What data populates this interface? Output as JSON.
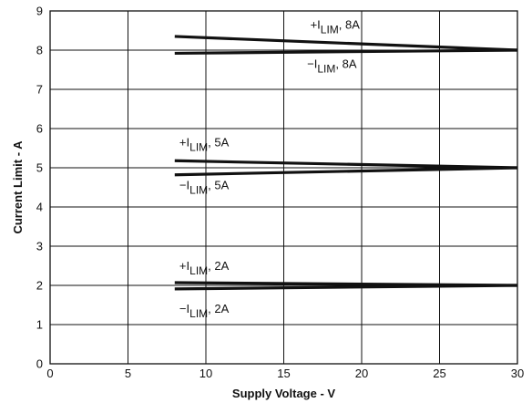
{
  "chart_data": {
    "type": "line",
    "title": "",
    "xlabel": "Supply Voltage - V",
    "ylabel": "Current Limit - A",
    "xlim": [
      0,
      30
    ],
    "ylim": [
      0,
      9
    ],
    "x_ticks": [
      "0",
      "5",
      "10",
      "15",
      "20",
      "25",
      "30"
    ],
    "y_ticks": [
      "0",
      "1",
      "2",
      "3",
      "4",
      "5",
      "6",
      "7",
      "8",
      "9"
    ],
    "grid": true,
    "series": [
      {
        "name": "+I_LIM, 8A",
        "x": [
          8,
          30
        ],
        "y": [
          8.35,
          8.0
        ]
      },
      {
        "name": "−I_LIM, 8A",
        "x": [
          8,
          30
        ],
        "y": [
          7.92,
          8.0
        ]
      },
      {
        "name": "+I_LIM, 5A",
        "x": [
          8,
          30
        ],
        "y": [
          5.18,
          5.0
        ]
      },
      {
        "name": "−I_LIM, 5A",
        "x": [
          8,
          30
        ],
        "y": [
          4.82,
          5.0
        ]
      },
      {
        "name": "+I_LIM, 2A",
        "x": [
          8,
          30
        ],
        "y": [
          2.07,
          2.0
        ]
      },
      {
        "name": "−I_LIM, 2A",
        "x": [
          8,
          30
        ],
        "y": [
          1.91,
          2.0
        ]
      }
    ],
    "annotations": [
      {
        "prefix": "+I",
        "sub": "LIM",
        "suffix": ", 8A",
        "x": 16.7,
        "y": 8.55
      },
      {
        "prefix": "−I",
        "sub": "LIM",
        "suffix": ", 8A",
        "x": 16.5,
        "y": 7.55
      },
      {
        "prefix": "+I",
        "sub": "LIM",
        "suffix": ", 5A",
        "x": 8.3,
        "y": 5.55
      },
      {
        "prefix": "−I",
        "sub": "LIM",
        "suffix": ", 5A",
        "x": 8.3,
        "y": 4.45
      },
      {
        "prefix": "+I",
        "sub": "LIM",
        "suffix": ", 2A",
        "x": 8.3,
        "y": 2.4
      },
      {
        "prefix": "−I",
        "sub": "LIM",
        "suffix": ", 2A",
        "x": 8.3,
        "y": 1.3
      }
    ]
  }
}
